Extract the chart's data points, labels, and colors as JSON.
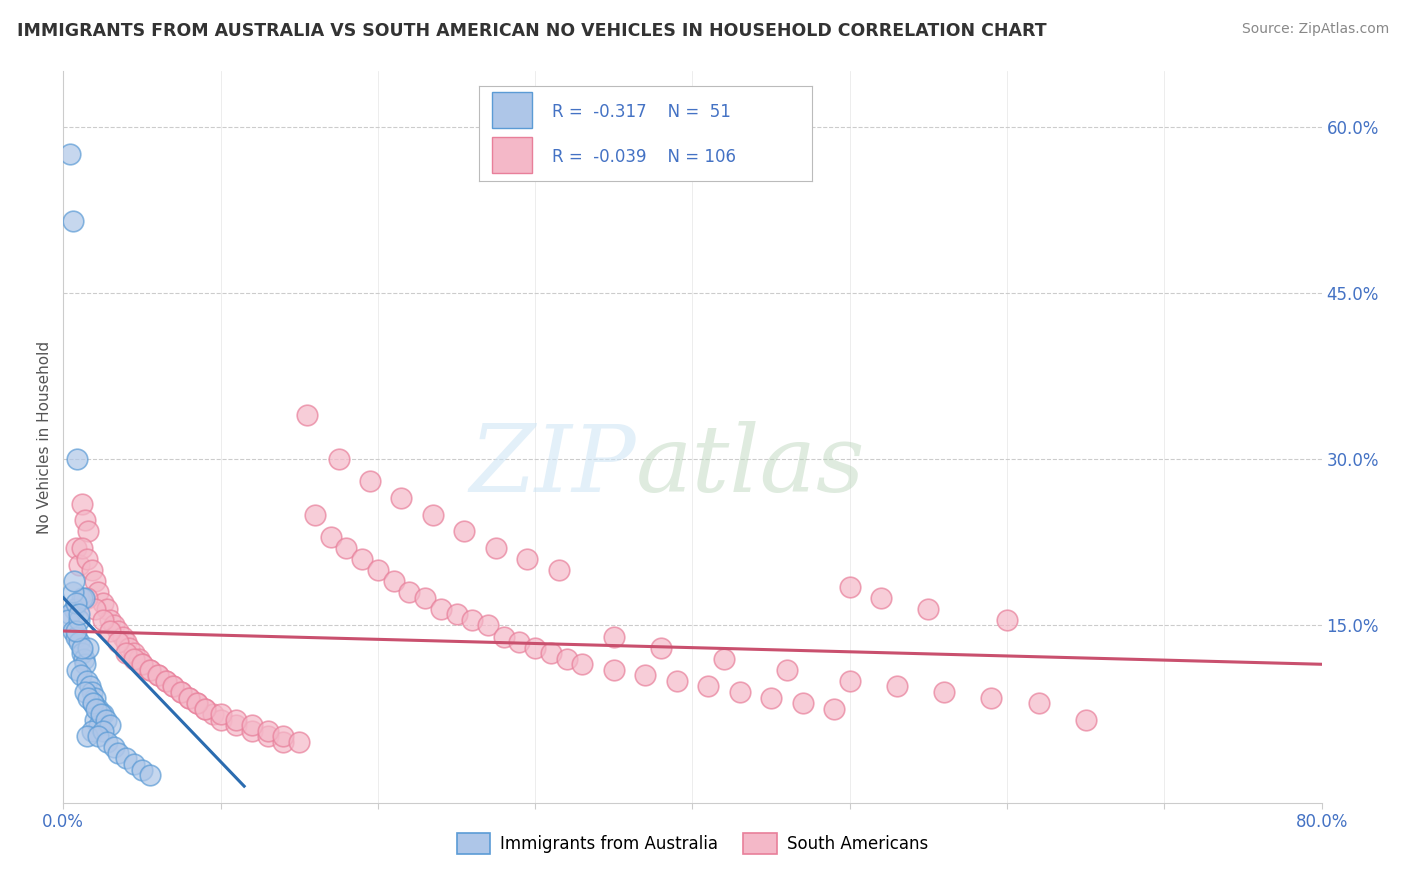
{
  "title": "IMMIGRANTS FROM AUSTRALIA VS SOUTH AMERICAN NO VEHICLES IN HOUSEHOLD CORRELATION CHART",
  "source": "Source: ZipAtlas.com",
  "ylabel": "No Vehicles in Household",
  "xlim": [
    0.0,
    0.8
  ],
  "ylim": [
    -0.01,
    0.65
  ],
  "yticks_right": [
    0.0,
    0.15,
    0.3,
    0.45,
    0.6
  ],
  "yticklabels_right": [
    "",
    "15.0%",
    "30.0%",
    "45.0%",
    "60.0%"
  ],
  "legend_R_blue": "-0.317",
  "legend_N_blue": "51",
  "legend_R_pink": "-0.039",
  "legend_N_pink": "106",
  "background_color": "#ffffff",
  "grid_color": "#cccccc",
  "blue_fill": "#aec6e8",
  "blue_edge": "#5b9bd5",
  "pink_fill": "#f4b8c8",
  "pink_edge": "#e87f9a",
  "blue_line_color": "#2b6cb0",
  "pink_line_color": "#c9506e",
  "title_color": "#333333",
  "source_color": "#888888",
  "axis_label_color": "#4472c4",
  "ylabel_color": "#555555",
  "blue_scatter_x": [
    0.004,
    0.006,
    0.009,
    0.012,
    0.007,
    0.004,
    0.003,
    0.006,
    0.008,
    0.01,
    0.012,
    0.013,
    0.014,
    0.009,
    0.011,
    0.015,
    0.017,
    0.018,
    0.02,
    0.013,
    0.016,
    0.019,
    0.022,
    0.025,
    0.02,
    0.023,
    0.018,
    0.015,
    0.012,
    0.01,
    0.008,
    0.014,
    0.016,
    0.019,
    0.021,
    0.024,
    0.027,
    0.03,
    0.025,
    0.022,
    0.028,
    0.032,
    0.035,
    0.04,
    0.045,
    0.05,
    0.055,
    0.006,
    0.007,
    0.008,
    0.01
  ],
  "blue_scatter_y": [
    0.575,
    0.515,
    0.3,
    0.175,
    0.165,
    0.16,
    0.155,
    0.145,
    0.14,
    0.135,
    0.125,
    0.12,
    0.115,
    0.11,
    0.105,
    0.1,
    0.095,
    0.09,
    0.085,
    0.175,
    0.13,
    0.08,
    0.075,
    0.07,
    0.065,
    0.06,
    0.055,
    0.05,
    0.13,
    0.155,
    0.145,
    0.09,
    0.085,
    0.08,
    0.075,
    0.07,
    0.065,
    0.06,
    0.055,
    0.05,
    0.045,
    0.04,
    0.035,
    0.03,
    0.025,
    0.02,
    0.015,
    0.18,
    0.19,
    0.17,
    0.16
  ],
  "pink_scatter_x": [
    0.008,
    0.01,
    0.012,
    0.014,
    0.016,
    0.012,
    0.015,
    0.018,
    0.02,
    0.022,
    0.025,
    0.028,
    0.03,
    0.032,
    0.035,
    0.038,
    0.04,
    0.042,
    0.045,
    0.048,
    0.05,
    0.055,
    0.06,
    0.065,
    0.07,
    0.075,
    0.08,
    0.085,
    0.09,
    0.095,
    0.1,
    0.11,
    0.12,
    0.13,
    0.14,
    0.015,
    0.02,
    0.025,
    0.03,
    0.035,
    0.04,
    0.045,
    0.05,
    0.055,
    0.06,
    0.065,
    0.07,
    0.075,
    0.08,
    0.085,
    0.09,
    0.1,
    0.11,
    0.12,
    0.13,
    0.14,
    0.15,
    0.16,
    0.17,
    0.18,
    0.19,
    0.2,
    0.21,
    0.22,
    0.23,
    0.24,
    0.25,
    0.26,
    0.27,
    0.28,
    0.29,
    0.3,
    0.31,
    0.32,
    0.33,
    0.35,
    0.37,
    0.39,
    0.41,
    0.43,
    0.45,
    0.47,
    0.49,
    0.35,
    0.38,
    0.42,
    0.46,
    0.5,
    0.53,
    0.56,
    0.59,
    0.62,
    0.65,
    0.5,
    0.52,
    0.55,
    0.6,
    0.155,
    0.175,
    0.195,
    0.215,
    0.235,
    0.255,
    0.275,
    0.295,
    0.315
  ],
  "pink_scatter_y": [
    0.22,
    0.205,
    0.26,
    0.245,
    0.235,
    0.22,
    0.21,
    0.2,
    0.19,
    0.18,
    0.17,
    0.165,
    0.155,
    0.15,
    0.145,
    0.14,
    0.135,
    0.13,
    0.125,
    0.12,
    0.115,
    0.11,
    0.105,
    0.1,
    0.095,
    0.09,
    0.085,
    0.08,
    0.075,
    0.07,
    0.065,
    0.06,
    0.055,
    0.05,
    0.045,
    0.175,
    0.165,
    0.155,
    0.145,
    0.135,
    0.125,
    0.12,
    0.115,
    0.11,
    0.105,
    0.1,
    0.095,
    0.09,
    0.085,
    0.08,
    0.075,
    0.07,
    0.065,
    0.06,
    0.055,
    0.05,
    0.045,
    0.25,
    0.23,
    0.22,
    0.21,
    0.2,
    0.19,
    0.18,
    0.175,
    0.165,
    0.16,
    0.155,
    0.15,
    0.14,
    0.135,
    0.13,
    0.125,
    0.12,
    0.115,
    0.11,
    0.105,
    0.1,
    0.095,
    0.09,
    0.085,
    0.08,
    0.075,
    0.14,
    0.13,
    0.12,
    0.11,
    0.1,
    0.095,
    0.09,
    0.085,
    0.08,
    0.065,
    0.185,
    0.175,
    0.165,
    0.155,
    0.34,
    0.3,
    0.28,
    0.265,
    0.25,
    0.235,
    0.22,
    0.21,
    0.2
  ],
  "blue_trend_x": [
    0.0,
    0.115
  ],
  "blue_trend_y": [
    0.175,
    0.005
  ],
  "pink_trend_x": [
    0.0,
    0.8
  ],
  "pink_trend_y": [
    0.145,
    0.115
  ]
}
